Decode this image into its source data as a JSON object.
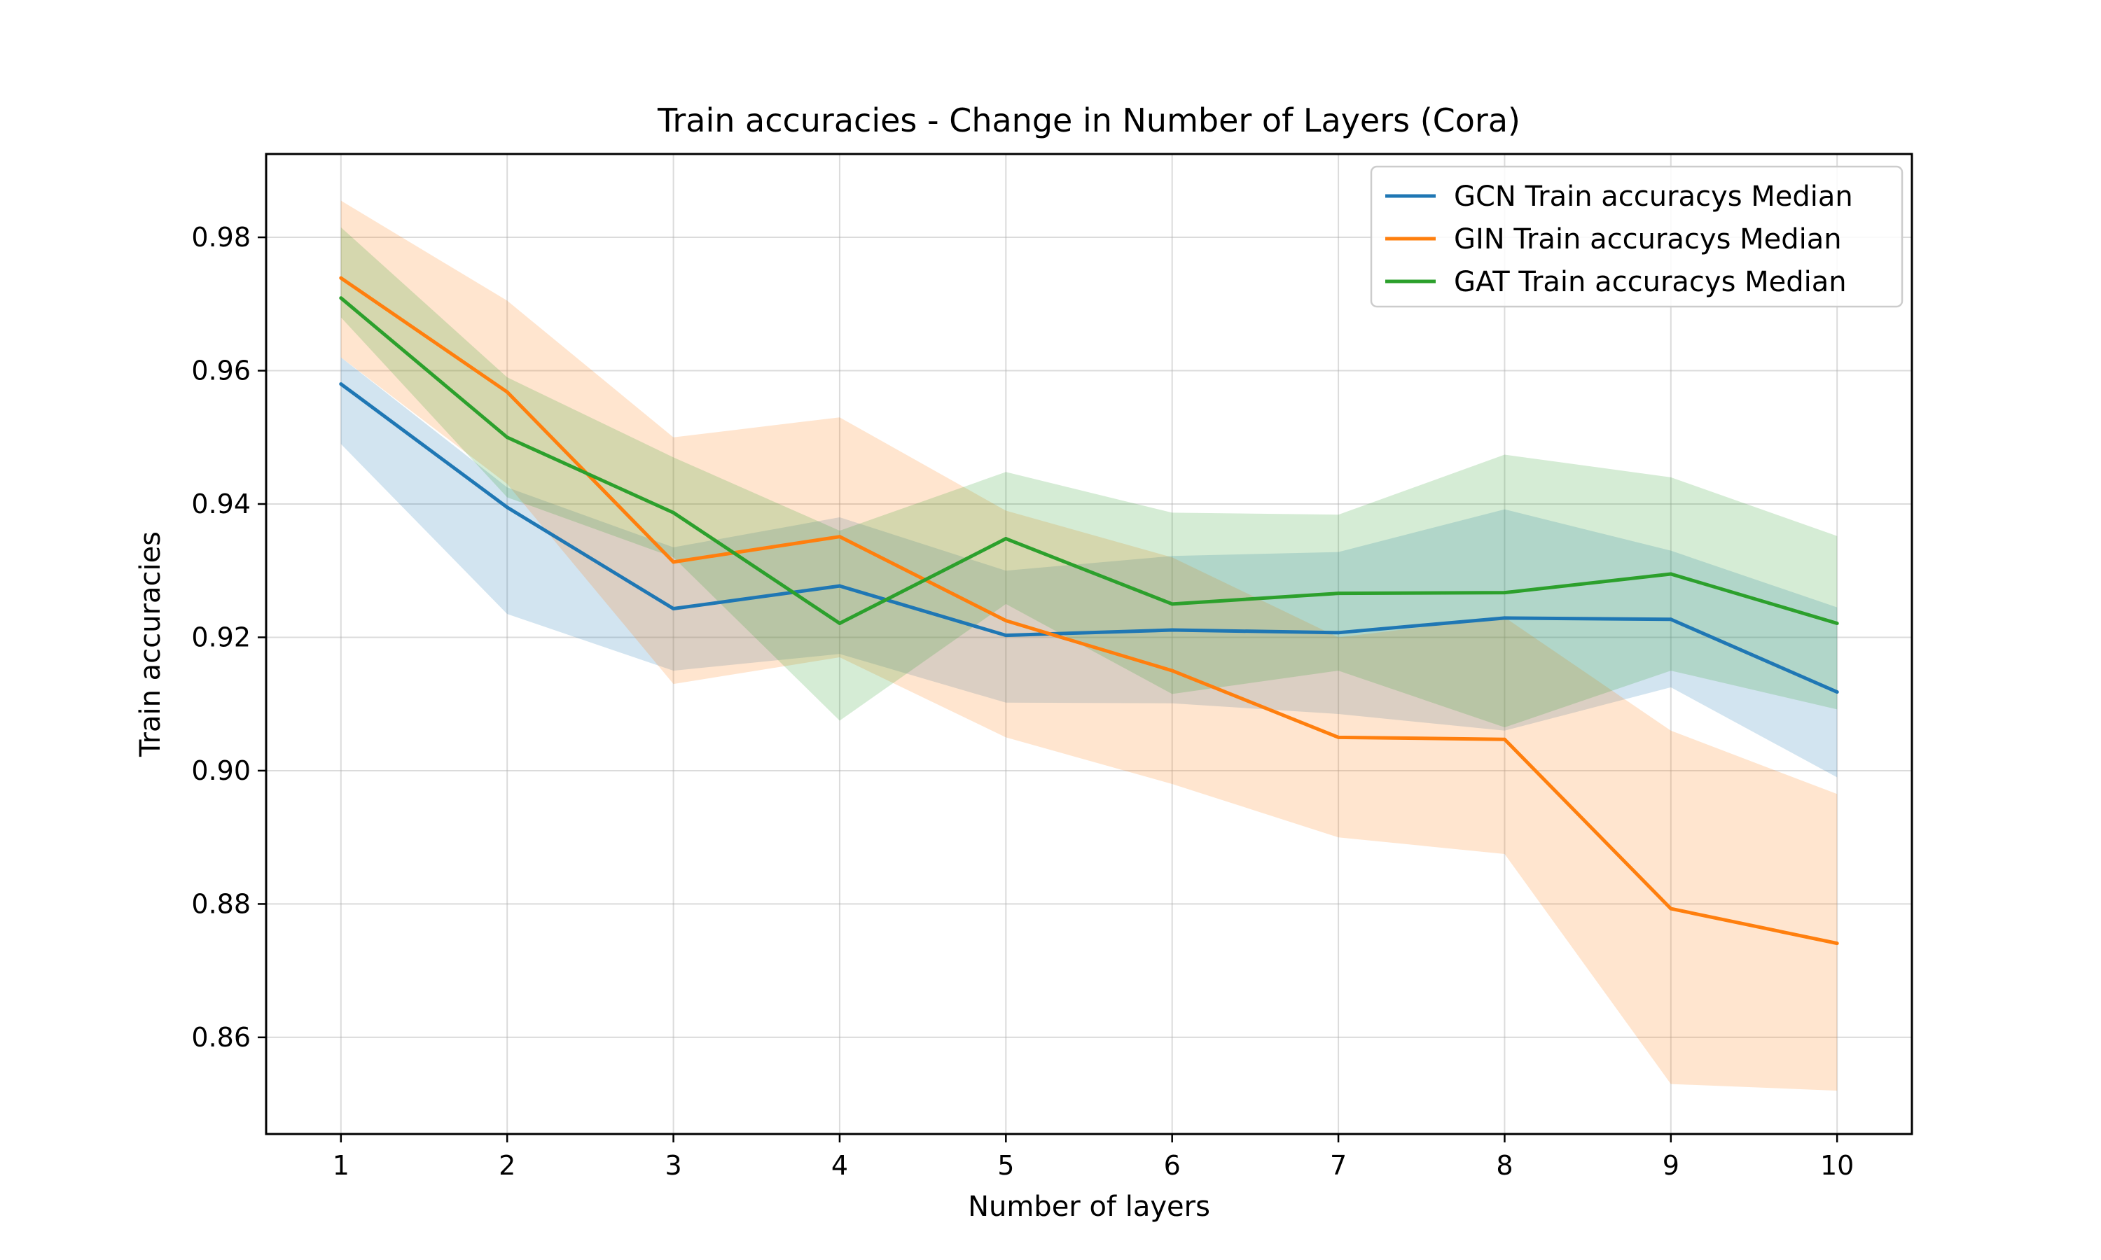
{
  "chart_data": {
    "type": "line",
    "title": "Train accuracies - Change in Number of Layers (Cora)",
    "xlabel": "Number of layers",
    "ylabel": "Train accuracies",
    "x": [
      1,
      2,
      3,
      4,
      5,
      6,
      7,
      8,
      9,
      10
    ],
    "xlim": [
      0.55,
      10.45
    ],
    "ylim": [
      0.8455,
      0.9925
    ],
    "yticks": [
      "0.86",
      "0.88",
      "0.90",
      "0.92",
      "0.94",
      "0.96",
      "0.98"
    ],
    "xticks": [
      "1",
      "2",
      "3",
      "4",
      "5",
      "6",
      "7",
      "8",
      "9",
      "10"
    ],
    "grid": true,
    "legend_position": "top-right",
    "series": [
      {
        "name": "GCN Train accuracys Median",
        "color": "#1f77b4",
        "values": [
          0.958,
          0.9395,
          0.9243,
          0.9277,
          0.9203,
          0.9211,
          0.9207,
          0.9229,
          0.9227,
          0.9118
        ],
        "upper": [
          0.962,
          0.9425,
          0.9335,
          0.938,
          0.93,
          0.9322,
          0.9328,
          0.9392,
          0.933,
          0.9245
        ],
        "lower": [
          0.949,
          0.9235,
          0.915,
          0.9175,
          0.9102,
          0.9101,
          0.9085,
          0.906,
          0.9125,
          0.899
        ]
      },
      {
        "name": "GIN Train accuracys Median",
        "color": "#ff7f0e",
        "values": [
          0.9739,
          0.9568,
          0.9313,
          0.9351,
          0.9225,
          0.915,
          0.905,
          0.9047,
          0.8793,
          0.8741
        ],
        "upper": [
          0.9855,
          0.9705,
          0.95,
          0.953,
          0.939,
          0.932,
          0.92,
          0.923,
          0.906,
          0.8965
        ],
        "lower": [
          0.962,
          0.943,
          0.913,
          0.917,
          0.905,
          0.898,
          0.89,
          0.8875,
          0.853,
          0.852
        ]
      },
      {
        "name": "GAT Train accuracys Median",
        "color": "#2ca02c",
        "values": [
          0.9709,
          0.95,
          0.9387,
          0.9221,
          0.9348,
          0.925,
          0.9266,
          0.9267,
          0.9295,
          0.9221
        ],
        "upper": [
          0.9815,
          0.959,
          0.947,
          0.936,
          0.9448,
          0.9387,
          0.9384,
          0.9474,
          0.944,
          0.9352
        ],
        "lower": [
          0.968,
          0.941,
          0.932,
          0.9075,
          0.925,
          0.9115,
          0.915,
          0.9065,
          0.915,
          0.9092
        ]
      }
    ]
  }
}
